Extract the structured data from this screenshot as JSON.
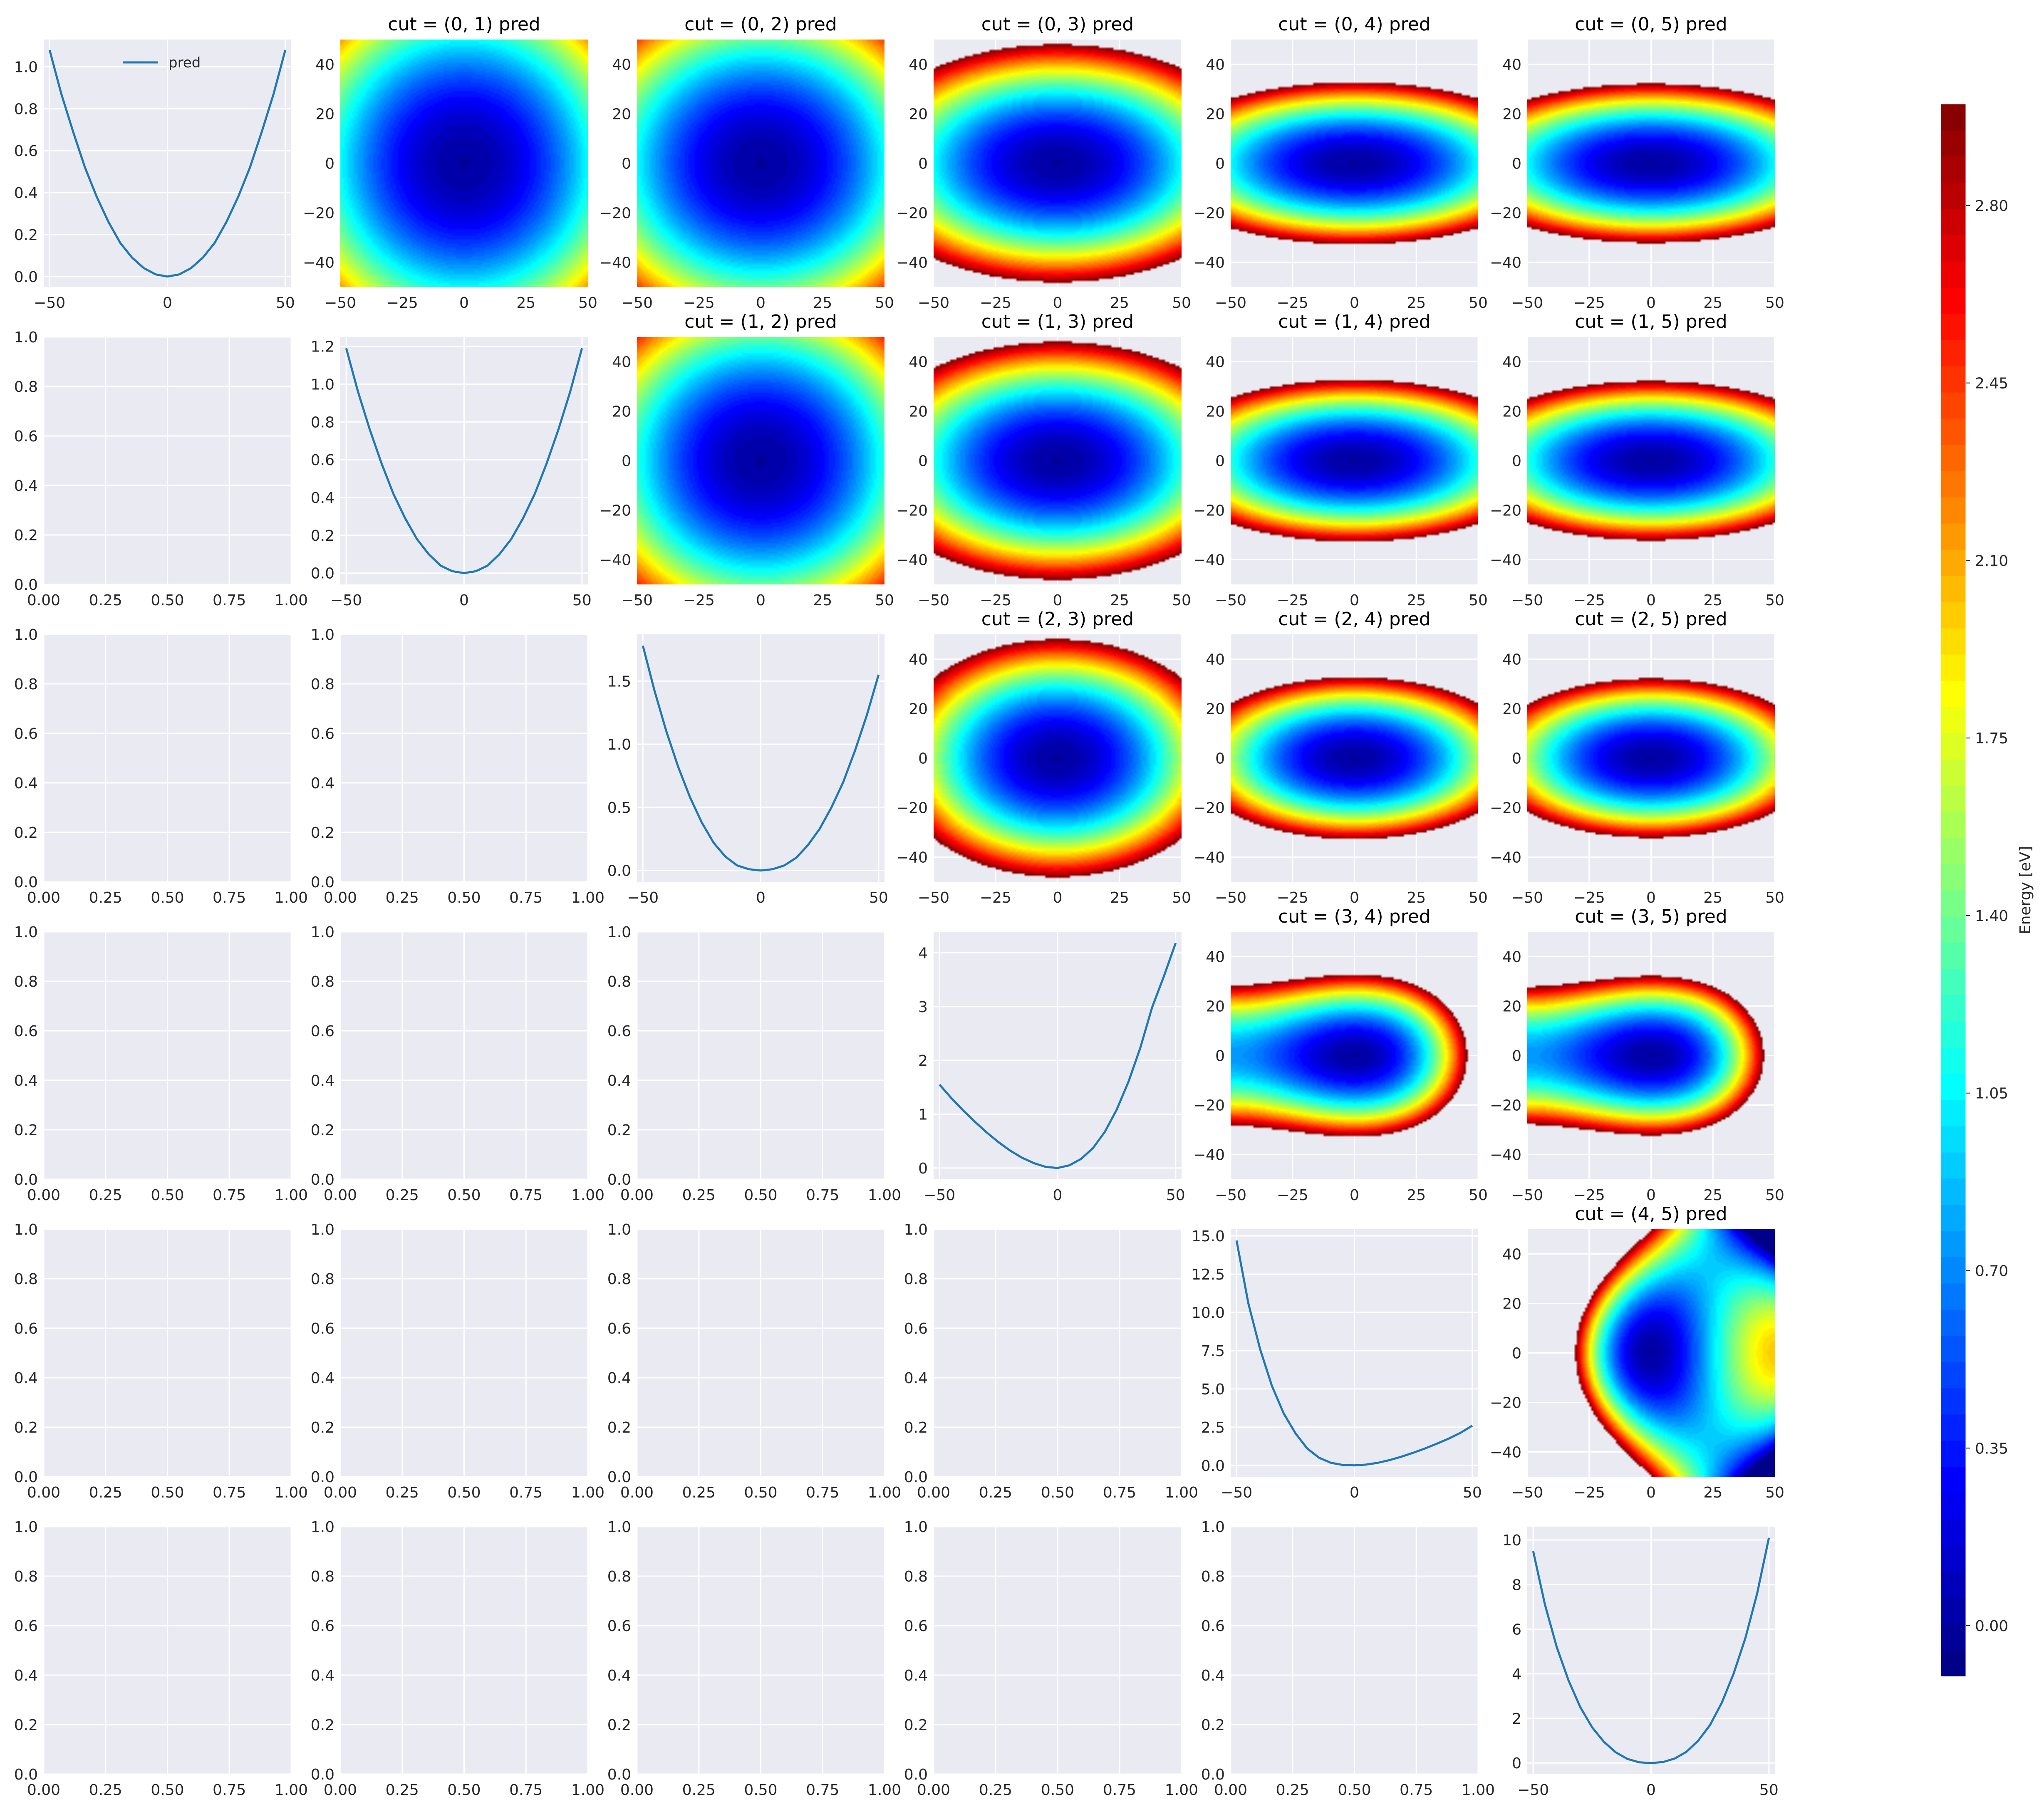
{
  "figure": {
    "background": "#ffffff",
    "panel_background": "#eaeaf2",
    "grid_color": "#ffffff",
    "line_color": "#1f77b4",
    "colormap": "jet"
  },
  "colorbar": {
    "label": "Energy [eV]",
    "min": -0.1,
    "max": 3.0,
    "levels": 60,
    "ticks": [
      0.0,
      0.35,
      0.7,
      1.05,
      1.4,
      1.75,
      2.1,
      2.45,
      2.8
    ],
    "tick_labels": [
      "0.00",
      "0.35",
      "0.70",
      "1.05",
      "1.40",
      "1.75",
      "2.10",
      "2.45",
      "2.80"
    ]
  },
  "chart_data": [
    {
      "type": "line",
      "row": 0,
      "col": 0,
      "title": "",
      "legend": [
        "pred"
      ],
      "legend_position": "upper-left",
      "x": [
        -50,
        -45,
        -40,
        -35,
        -30,
        -25,
        -20,
        -15,
        -10,
        -5,
        0,
        5,
        10,
        15,
        20,
        25,
        30,
        35,
        40,
        45,
        50
      ],
      "series": [
        {
          "name": "pred",
          "values": [
            1.08,
            0.87,
            0.69,
            0.52,
            0.38,
            0.26,
            0.16,
            0.09,
            0.04,
            0.01,
            0.0,
            0.01,
            0.04,
            0.09,
            0.16,
            0.26,
            0.38,
            0.52,
            0.69,
            0.87,
            1.08
          ]
        }
      ],
      "xlim": [
        -52.5,
        52.5
      ],
      "ylim": [
        -0.05,
        1.13
      ],
      "xticks": [
        -50,
        0,
        50
      ],
      "xtick_labels": [
        "−50",
        "0",
        "50"
      ],
      "yticks": [
        0.0,
        0.2,
        0.4,
        0.6,
        0.8,
        1.0
      ],
      "ytick_labels": [
        "0.0",
        "0.2",
        "0.4",
        "0.6",
        "0.8",
        "1.0"
      ]
    },
    {
      "type": "heatmap",
      "row": 0,
      "col": 1,
      "title": "cut = (0, 1) pred",
      "xlim": [
        -50,
        50
      ],
      "ylim": [
        -50,
        50
      ],
      "energy": {
        "a": 0.00043,
        "b": 0.00043,
        "c": 0.0,
        "ax3": 0.0,
        "bx3": 0.0,
        "ax4": 0.0,
        "by4": 0.0
      }
    },
    {
      "type": "heatmap",
      "row": 0,
      "col": 2,
      "title": "cut = (0, 2) pred",
      "xlim": [
        -50,
        50
      ],
      "ylim": [
        -50,
        50
      ],
      "energy": {
        "a": 0.00043,
        "b": 0.00055,
        "c": 0.0,
        "ax3": 0.0,
        "bx3": 0.0,
        "ax4": 0.0,
        "by4": 0.0
      }
    },
    {
      "type": "heatmap",
      "row": 0,
      "col": 3,
      "title": "cut = (0, 3) pred",
      "xlim": [
        -50,
        50
      ],
      "ylim": [
        -50,
        50
      ],
      "energy": {
        "a": 0.00043,
        "b": 0.0013,
        "c": 0.0,
        "ax3": 0.0,
        "bx3": 0.0,
        "ax4": 0.0,
        "by4": 0.0
      }
    },
    {
      "type": "heatmap",
      "row": 0,
      "col": 4,
      "title": "cut = (0, 4) pred",
      "xlim": [
        -50,
        50
      ],
      "ylim": [
        -50,
        50
      ],
      "energy": {
        "a": 0.00043,
        "b": 0.0028,
        "c": 0.0,
        "ax3": 0.0,
        "bx3": 0.0,
        "ax4": 0.0,
        "by4": 0.0
      }
    },
    {
      "type": "heatmap",
      "row": 0,
      "col": 5,
      "title": "cut = (0, 5) pred",
      "xlim": [
        -50,
        50
      ],
      "ylim": [
        -50,
        50
      ],
      "energy": {
        "a": 0.00043,
        "b": 0.0029,
        "c": 0.0,
        "ax3": 0.0,
        "bx3": 0.0,
        "ax4": 0.0,
        "by4": 0.0
      }
    },
    {
      "type": "heatmap",
      "row": 1,
      "col": 2,
      "title": "cut = (1, 2) pred",
      "xlim": [
        -50,
        50
      ],
      "ylim": [
        -50,
        50
      ],
      "energy": {
        "a": 0.00047,
        "b": 0.00055,
        "c": 0.0,
        "ax3": 0.0,
        "bx3": 0.0,
        "ax4": 0.0,
        "by4": 0.0
      }
    },
    {
      "type": "heatmap",
      "row": 1,
      "col": 3,
      "title": "cut = (1, 3) pred",
      "xlim": [
        -50,
        50
      ],
      "ylim": [
        -50,
        50
      ],
      "energy": {
        "a": 0.00047,
        "b": 0.0013,
        "c": 0.0,
        "ax3": 0.0,
        "bx3": 0.0,
        "ax4": 0.0,
        "by4": 0.0
      }
    },
    {
      "type": "heatmap",
      "row": 1,
      "col": 4,
      "title": "cut = (1, 4) pred",
      "xlim": [
        -50,
        50
      ],
      "ylim": [
        -50,
        50
      ],
      "energy": {
        "a": 0.00047,
        "b": 0.0028,
        "c": 0.0,
        "ax3": 0.0,
        "bx3": 0.0,
        "ax4": 0.0,
        "by4": 0.0
      }
    },
    {
      "type": "heatmap",
      "row": 1,
      "col": 5,
      "title": "cut = (1, 5) pred",
      "xlim": [
        -50,
        50
      ],
      "ylim": [
        -50,
        50
      ],
      "energy": {
        "a": 0.00047,
        "b": 0.0029,
        "c": 0.0,
        "ax3": 0.0,
        "bx3": 0.0,
        "ax4": 0.0,
        "by4": 0.0
      }
    },
    {
      "type": "heatmap",
      "row": 2,
      "col": 3,
      "title": "cut = (2, 3) pred",
      "xlim": [
        -50,
        50
      ],
      "ylim": [
        -50,
        50
      ],
      "energy": {
        "a": 0.00065,
        "b": 0.0013,
        "c": 0.0,
        "ax3": 0.0,
        "bx3": 0.0,
        "ax4": 0.0,
        "by4": 0.0
      }
    },
    {
      "type": "heatmap",
      "row": 2,
      "col": 4,
      "title": "cut = (2, 4) pred",
      "xlim": [
        -50,
        50
      ],
      "ylim": [
        -50,
        50
      ],
      "energy": {
        "a": 0.00065,
        "b": 0.0028,
        "c": 0.0,
        "ax3": 0.0,
        "bx3": 0.0,
        "ax4": 0.0,
        "by4": 0.0
      }
    },
    {
      "type": "heatmap",
      "row": 2,
      "col": 5,
      "title": "cut = (2, 5) pred",
      "xlim": [
        -50,
        50
      ],
      "ylim": [
        -50,
        50
      ],
      "energy": {
        "a": 0.00065,
        "b": 0.0029,
        "c": 0.0,
        "ax3": 0.0,
        "bx3": 0.0,
        "ax4": 0.0,
        "by4": 0.0
      }
    },
    {
      "type": "heatmap",
      "row": 3,
      "col": 4,
      "title": "cut = (3, 4) pred",
      "xlim": [
        -50,
        50
      ],
      "ylim": [
        -50,
        50
      ],
      "energy": {
        "a": 0.0009,
        "b": 0.0028,
        "c": 0.0,
        "ax3": 1.2e-05,
        "bx3": 0.0,
        "ax4": 0.0,
        "by4": 0.0
      }
    },
    {
      "type": "heatmap",
      "row": 3,
      "col": 5,
      "title": "cut = (3, 5) pred",
      "xlim": [
        -50,
        50
      ],
      "ylim": [
        -50,
        50
      ],
      "energy": {
        "a": 0.0009,
        "b": 0.0029,
        "c": 0.0,
        "ax3": 1.2e-05,
        "bx3": 0.0,
        "ax4": 0.0,
        "by4": 0.0
      }
    },
    {
      "type": "heatmap",
      "row": 4,
      "col": 5,
      "title": "cut = (4, 5) pred",
      "xlim": [
        -50,
        50
      ],
      "ylim": [
        -50,
        50
      ],
      "energy": {
        "a": 0.0023,
        "b": 0.0012,
        "c": 0.0,
        "ax3": -3e-05,
        "bx3": -5e-05,
        "ax4": 0.0,
        "by4": 0.0
      }
    },
    {
      "type": "line",
      "row": 1,
      "col": 1,
      "title": "",
      "x": [
        -50,
        -45,
        -40,
        -35,
        -30,
        -25,
        -20,
        -15,
        -10,
        -5,
        0,
        5,
        10,
        15,
        20,
        25,
        30,
        35,
        40,
        45,
        50
      ],
      "series": [
        {
          "values": [
            1.19,
            0.96,
            0.76,
            0.58,
            0.42,
            0.29,
            0.18,
            0.1,
            0.04,
            0.01,
            0.0,
            0.01,
            0.04,
            0.1,
            0.18,
            0.29,
            0.42,
            0.58,
            0.76,
            0.96,
            1.19
          ]
        }
      ],
      "xlim": [
        -52.5,
        52.5
      ],
      "ylim": [
        -0.06,
        1.25
      ],
      "xticks": [
        -50,
        0,
        50
      ],
      "xtick_labels": [
        "−50",
        "0",
        "50"
      ],
      "yticks": [
        0.0,
        0.2,
        0.4,
        0.6,
        0.8,
        1.0,
        1.2
      ],
      "ytick_labels": [
        "0.0",
        "0.2",
        "0.4",
        "0.6",
        "0.8",
        "1.0",
        "1.2"
      ]
    },
    {
      "type": "line",
      "row": 2,
      "col": 2,
      "title": "",
      "x": [
        -50,
        -45,
        -40,
        -35,
        -30,
        -25,
        -20,
        -15,
        -10,
        -5,
        0,
        5,
        10,
        15,
        20,
        25,
        30,
        35,
        40,
        45,
        50
      ],
      "series": [
        {
          "values": [
            1.78,
            1.42,
            1.1,
            0.82,
            0.58,
            0.38,
            0.22,
            0.11,
            0.04,
            0.01,
            0.0,
            0.01,
            0.04,
            0.1,
            0.2,
            0.33,
            0.5,
            0.7,
            0.95,
            1.23,
            1.55
          ]
        }
      ],
      "xlim": [
        -52.5,
        52.5
      ],
      "ylim": [
        -0.09,
        1.87
      ],
      "xticks": [
        -50,
        0,
        50
      ],
      "xtick_labels": [
        "−50",
        "0",
        "50"
      ],
      "yticks": [
        0.0,
        0.5,
        1.0,
        1.5
      ],
      "ytick_labels": [
        "0.0",
        "0.5",
        "1.0",
        "1.5"
      ]
    },
    {
      "type": "line",
      "row": 3,
      "col": 3,
      "title": "",
      "x": [
        -50,
        -45,
        -40,
        -35,
        -30,
        -25,
        -20,
        -15,
        -10,
        -5,
        0,
        5,
        10,
        15,
        20,
        25,
        30,
        35,
        40,
        45,
        50
      ],
      "series": [
        {
          "values": [
            1.55,
            1.3,
            1.07,
            0.86,
            0.66,
            0.48,
            0.32,
            0.19,
            0.09,
            0.02,
            0.0,
            0.05,
            0.17,
            0.37,
            0.67,
            1.08,
            1.6,
            2.23,
            2.98,
            3.56,
            4.18
          ]
        }
      ],
      "xlim": [
        -52.5,
        52.5
      ],
      "ylim": [
        -0.21,
        4.39
      ],
      "xticks": [
        -50,
        0,
        50
      ],
      "xtick_labels": [
        "−50",
        "0",
        "50"
      ],
      "yticks": [
        0,
        1,
        2,
        3,
        4
      ],
      "ytick_labels": [
        "0",
        "1",
        "2",
        "3",
        "4"
      ]
    },
    {
      "type": "line",
      "row": 4,
      "col": 4,
      "title": "",
      "x": [
        -50,
        -45,
        -40,
        -35,
        -30,
        -25,
        -20,
        -15,
        -10,
        -5,
        0,
        5,
        10,
        15,
        20,
        25,
        30,
        35,
        40,
        45,
        50
      ],
      "series": [
        {
          "values": [
            14.7,
            10.6,
            7.6,
            5.2,
            3.4,
            2.1,
            1.1,
            0.5,
            0.17,
            0.03,
            0.0,
            0.05,
            0.17,
            0.35,
            0.57,
            0.83,
            1.11,
            1.42,
            1.75,
            2.13,
            2.6
          ]
        }
      ],
      "xlim": [
        -52.5,
        52.5
      ],
      "ylim": [
        -0.74,
        15.44
      ],
      "xticks": [
        -50,
        0,
        50
      ],
      "xtick_labels": [
        "−50",
        "0",
        "50"
      ],
      "yticks": [
        0.0,
        2.5,
        5.0,
        7.5,
        10.0,
        12.5,
        15.0
      ],
      "ytick_labels": [
        "0.0",
        "2.5",
        "5.0",
        "7.5",
        "10.0",
        "12.5",
        "15.0"
      ]
    },
    {
      "type": "line",
      "row": 5,
      "col": 5,
      "title": "",
      "x": [
        -50,
        -45,
        -40,
        -35,
        -30,
        -25,
        -20,
        -15,
        -10,
        -5,
        0,
        5,
        10,
        15,
        20,
        25,
        30,
        35,
        40,
        45,
        50
      ],
      "series": [
        {
          "values": [
            9.5,
            7.1,
            5.2,
            3.7,
            2.5,
            1.6,
            0.95,
            0.48,
            0.18,
            0.03,
            0.0,
            0.04,
            0.2,
            0.5,
            1.0,
            1.7,
            2.7,
            4.0,
            5.6,
            7.6,
            10.1
          ]
        }
      ],
      "xlim": [
        -52.5,
        52.5
      ],
      "ylim": [
        -0.5,
        10.6
      ],
      "xticks": [
        -50,
        0,
        50
      ],
      "xtick_labels": [
        "−50",
        "0",
        "50"
      ],
      "yticks": [
        0,
        2,
        4,
        6,
        8,
        10
      ],
      "ytick_labels": [
        "0",
        "2",
        "4",
        "6",
        "8",
        "10"
      ]
    }
  ],
  "heatmap_axes": {
    "xticks": [
      -50,
      -25,
      0,
      25,
      50
    ],
    "xtick_labels": [
      "−50",
      "−25",
      "0",
      "25",
      "50"
    ],
    "yticks": [
      -40,
      -20,
      0,
      20,
      40
    ],
    "ytick_labels": [
      "−40",
      "−20",
      "0",
      "20",
      "40"
    ]
  },
  "empty_axes": {
    "xticks": [
      0,
      0.25,
      0.5,
      0.75,
      1.0
    ],
    "xtick_labels": [
      "0.00",
      "0.25",
      "0.50",
      "0.75",
      "1.00"
    ],
    "yticks": [
      0,
      0.2,
      0.4,
      0.6,
      0.8,
      1.0
    ],
    "ytick_labels": [
      "0.0",
      "0.2",
      "0.4",
      "0.6",
      "0.8",
      "1.0"
    ]
  }
}
